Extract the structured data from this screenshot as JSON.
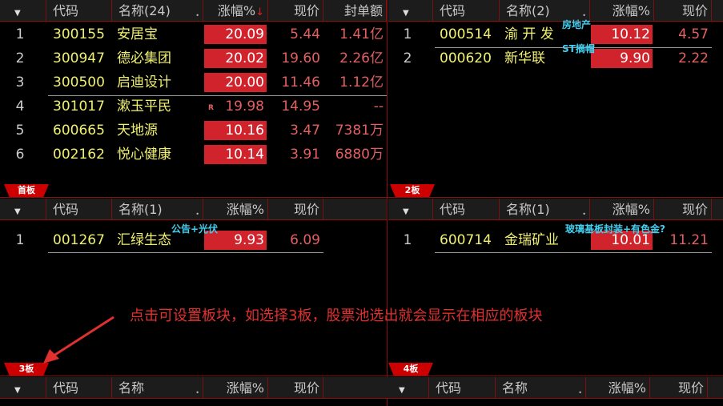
{
  "panels": [
    {
      "id": "p1",
      "tab": "首板",
      "columns": {
        "code": "代码",
        "name": "名称(24)",
        "pct": "涨幅%",
        "price": "现价",
        "amount": "封单额"
      },
      "sort_indicator": "↓",
      "rows": [
        {
          "n": "1",
          "code": "300155",
          "name": "安居宝",
          "pct": "20.09",
          "price": "5.44",
          "amount": "1.41亿",
          "limit": true
        },
        {
          "n": "2",
          "code": "300947",
          "name": "德必集团",
          "pct": "20.02",
          "price": "19.60",
          "amount": "2.26亿",
          "limit": true
        },
        {
          "n": "3",
          "code": "300500",
          "name": "启迪设计",
          "pct": "20.00",
          "price": "11.46",
          "amount": "1.12亿",
          "limit": true
        },
        {
          "n": "4",
          "code": "301017",
          "name": "漱玉平民",
          "pct": "19.98",
          "price": "14.95",
          "amount": "--",
          "limit": false,
          "mark": "R"
        },
        {
          "n": "5",
          "code": "600665",
          "name": "天地源",
          "pct": "10.16",
          "price": "3.47",
          "amount": "7381万",
          "limit": true
        },
        {
          "n": "6",
          "code": "002162",
          "name": "悦心健康",
          "pct": "10.14",
          "price": "3.91",
          "amount": "6880万",
          "limit": true
        }
      ]
    },
    {
      "id": "p2",
      "tab": "2板",
      "columns": {
        "code": "代码",
        "name": "名称(2)",
        "pct": "涨幅%",
        "price": "现价"
      },
      "rows": [
        {
          "n": "1",
          "code": "000514",
          "name": "渝 开 发",
          "pct": "10.12",
          "price": "4.57",
          "limit": true,
          "tag": "房地产"
        },
        {
          "n": "2",
          "code": "000620",
          "name": "新华联",
          "pct": "9.90",
          "price": "2.22",
          "limit": true,
          "tag": "ST摘帽"
        }
      ]
    },
    {
      "id": "p3",
      "tab": "3板",
      "columns": {
        "code": "代码",
        "name": "名称(1)",
        "pct": "涨幅%",
        "price": "现价"
      },
      "rows": [
        {
          "n": "1",
          "code": "001267",
          "name": "汇绿生态",
          "pct": "9.93",
          "price": "6.09",
          "limit": true,
          "tag": "公告+光伏"
        }
      ]
    },
    {
      "id": "p4",
      "tab": "4板",
      "columns": {
        "code": "代码",
        "name": "名称(1)",
        "pct": "涨幅%",
        "price": "现价"
      },
      "rows": [
        {
          "n": "1",
          "code": "600714",
          "name": "金瑞矿业",
          "pct": "10.01",
          "price": "11.21",
          "limit": true,
          "tag": "玻璃基板封装+有色金?"
        }
      ]
    },
    {
      "id": "p5",
      "columns": {
        "code": "代码",
        "name": "名称",
        "pct": "涨幅%",
        "price": "现价"
      },
      "rows": []
    },
    {
      "id": "p6",
      "columns": {
        "code": "代码",
        "name": "名称",
        "pct": "涨幅%",
        "price": "现价"
      },
      "rows": []
    }
  ],
  "annotation": "点击可设置板块，如选择3板，股票池选出就会显示在相应的板块",
  "colors": {
    "limit_bg": "#d0232c",
    "code": "#f0f070",
    "up": "#e26060",
    "tag": "#3fd0f0",
    "frame": "#8a1010"
  }
}
